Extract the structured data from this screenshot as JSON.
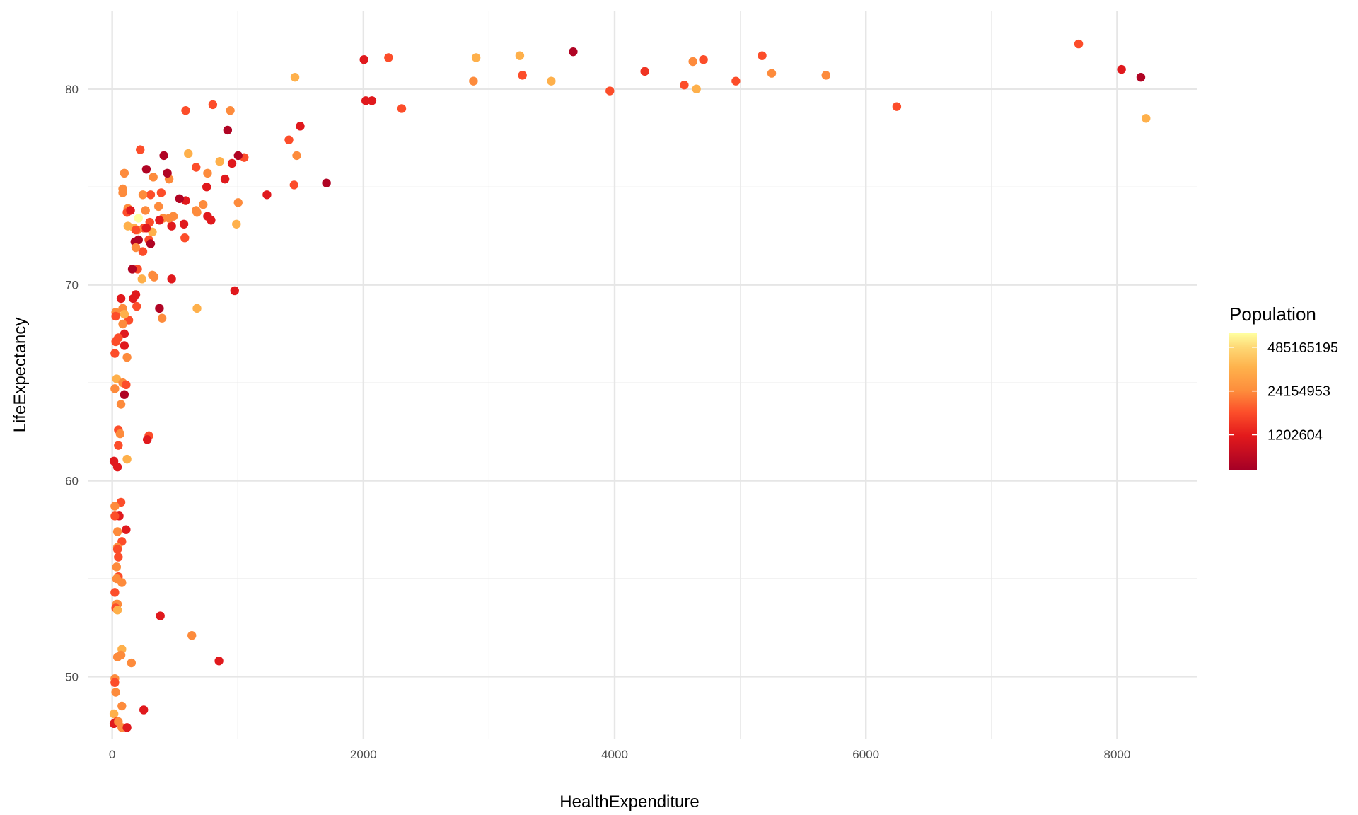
{
  "chart_data": {
    "type": "scatter",
    "xlabel": "HealthExpenditure",
    "ylabel": "LifeExpectancy",
    "xlim": [
      -195,
      8634
    ],
    "ylim": [
      46.8,
      84.0
    ],
    "x_ticks": [
      0,
      2000,
      4000,
      6000,
      8000
    ],
    "y_ticks": [
      50,
      60,
      70,
      80
    ],
    "grid": true,
    "legend": {
      "title": "Population",
      "placement": "right",
      "type": "colorbar",
      "scale": "log",
      "breaks": [
        1202604,
        24154953,
        485165195
      ],
      "labels": [
        "1202604",
        "24154953",
        "485165195"
      ],
      "range": [
        109000,
        1270000000
      ],
      "low_color": "#a50026",
      "high_color": "#ffffa0"
    },
    "columns": [
      "HealthExpenditure",
      "LifeExpectancy",
      "Population"
    ],
    "points": [
      [
        7694,
        82.3,
        5400000
      ],
      [
        8035,
        81.0,
        1000000
      ],
      [
        8189,
        80.6,
        163000
      ],
      [
        8230,
        78.5,
        110000000
      ],
      [
        6246,
        79.1,
        5400000
      ],
      [
        5682,
        80.7,
        24000000
      ],
      [
        5250,
        80.8,
        24000000
      ],
      [
        5174,
        81.7,
        5400000
      ],
      [
        4965,
        80.4,
        5400000
      ],
      [
        4707,
        81.5,
        5400000
      ],
      [
        4623,
        81.4,
        24000000
      ],
      [
        4651,
        80.0,
        110000000
      ],
      [
        4554,
        80.2,
        5400000
      ],
      [
        4240,
        80.9,
        2500000
      ],
      [
        3962,
        79.9,
        5400000
      ],
      [
        3670,
        81.9,
        163000
      ],
      [
        3495,
        80.4,
        110000000
      ],
      [
        3266,
        80.7,
        5400000
      ],
      [
        3245,
        81.7,
        110000000
      ],
      [
        2897,
        81.6,
        110000000
      ],
      [
        2876,
        80.4,
        24000000
      ],
      [
        2305,
        79.0,
        5400000
      ],
      [
        2200,
        81.6,
        5400000
      ],
      [
        2005,
        81.5,
        1000000
      ],
      [
        2068,
        79.4,
        1000000
      ],
      [
        2019,
        79.4,
        1000000
      ],
      [
        1455,
        80.6,
        110000000
      ],
      [
        1497,
        78.1,
        1000000
      ],
      [
        1407,
        77.4,
        5400000
      ],
      [
        1469,
        76.6,
        24000000
      ],
      [
        1448,
        75.1,
        5400000
      ],
      [
        1706,
        75.2,
        163000
      ],
      [
        1232,
        74.6,
        1000000
      ],
      [
        1051,
        76.5,
        5400000
      ],
      [
        1003,
        76.6,
        163000
      ],
      [
        954,
        76.2,
        1000000
      ],
      [
        1003,
        74.2,
        24000000
      ],
      [
        989,
        73.1,
        110000000
      ],
      [
        975,
        69.7,
        1000000
      ],
      [
        850,
        50.8,
        1000000
      ],
      [
        919,
        77.9,
        163000
      ],
      [
        940,
        78.9,
        24000000
      ],
      [
        801,
        79.2,
        5400000
      ],
      [
        585,
        78.9,
        5400000
      ],
      [
        856,
        76.3,
        110000000
      ],
      [
        898,
        75.4,
        1000000
      ],
      [
        759,
        75.7,
        24000000
      ],
      [
        752,
        75.0,
        1000000
      ],
      [
        668,
        76.0,
        5400000
      ],
      [
        606,
        76.7,
        110000000
      ],
      [
        759,
        73.5,
        1000000
      ],
      [
        787,
        73.3,
        1000000
      ],
      [
        724,
        74.1,
        24000000
      ],
      [
        668,
        73.8,
        24000000
      ],
      [
        675,
        73.7,
        24000000
      ],
      [
        585,
        74.3,
        1000000
      ],
      [
        536,
        74.4,
        163000
      ],
      [
        571,
        73.1,
        1000000
      ],
      [
        578,
        72.4,
        5400000
      ],
      [
        675,
        68.8,
        110000000
      ],
      [
        634,
        52.1,
        24000000
      ],
      [
        473,
        70.3,
        1000000
      ],
      [
        473,
        73.0,
        1000000
      ],
      [
        487,
        73.5,
        24000000
      ],
      [
        453,
        73.4,
        24000000
      ],
      [
        404,
        73.4,
        24000000
      ],
      [
        376,
        73.3,
        1000000
      ],
      [
        369,
        74.0,
        24000000
      ],
      [
        390,
        74.7,
        5400000
      ],
      [
        453,
        75.4,
        24000000
      ],
      [
        439,
        75.7,
        163000
      ],
      [
        411,
        76.6,
        163000
      ],
      [
        223,
        76.9,
        5400000
      ],
      [
        272,
        75.9,
        163000
      ],
      [
        327,
        75.5,
        24000000
      ],
      [
        306,
        74.6,
        5400000
      ],
      [
        244,
        74.6,
        24000000
      ],
      [
        265,
        73.8,
        24000000
      ],
      [
        376,
        68.8,
        163000
      ],
      [
        397,
        68.3,
        24000000
      ],
      [
        383,
        53.1,
        1000000
      ],
      [
        320,
        70.5,
        24000000
      ],
      [
        334,
        70.4,
        24000000
      ],
      [
        237,
        70.3,
        110000000
      ],
      [
        299,
        73.2,
        5400000
      ],
      [
        320,
        72.7,
        110000000
      ],
      [
        292,
        72.3,
        5400000
      ],
      [
        306,
        72.1,
        163000
      ],
      [
        251,
        72.9,
        5400000
      ],
      [
        272,
        72.9,
        1000000
      ],
      [
        244,
        71.7,
        5400000
      ],
      [
        292,
        62.3,
        5400000
      ],
      [
        279,
        62.1,
        1000000
      ],
      [
        251,
        48.3,
        1000000
      ],
      [
        202,
        72.8,
        24000000
      ],
      [
        174,
        72.9,
        110000000
      ],
      [
        188,
        72.8,
        5400000
      ],
      [
        209,
        72.3,
        163000
      ],
      [
        181,
        72.2,
        163000
      ],
      [
        188,
        71.9,
        24000000
      ],
      [
        202,
        70.8,
        5400000
      ],
      [
        160,
        70.8,
        163000
      ],
      [
        188,
        69.5,
        1000000
      ],
      [
        167,
        69.3,
        1000000
      ],
      [
        195,
        68.9,
        5400000
      ],
      [
        132,
        68.2,
        5400000
      ],
      [
        125,
        73.9,
        24000000
      ],
      [
        125,
        73.0,
        110000000
      ],
      [
        118,
        73.7,
        5400000
      ],
      [
        146,
        73.8,
        1000000
      ],
      [
        84,
        74.7,
        24000000
      ],
      [
        84,
        74.9,
        24000000
      ],
      [
        97,
        75.7,
        24000000
      ],
      [
        209,
        73.4,
        1300000000
      ],
      [
        70,
        69.3,
        1000000
      ],
      [
        84,
        68.8,
        24000000
      ],
      [
        97,
        68.5,
        110000000
      ],
      [
        28,
        68.6,
        24000000
      ],
      [
        28,
        68.4,
        5400000
      ],
      [
        84,
        68.0,
        24000000
      ],
      [
        97,
        67.5,
        1000000
      ],
      [
        49,
        67.3,
        5400000
      ],
      [
        28,
        67.1,
        5400000
      ],
      [
        97,
        66.9,
        1000000
      ],
      [
        21,
        66.5,
        5400000
      ],
      [
        118,
        66.3,
        24000000
      ],
      [
        35,
        65.2,
        110000000
      ],
      [
        84,
        65.0,
        24000000
      ],
      [
        111,
        64.9,
        5400000
      ],
      [
        21,
        64.7,
        24000000
      ],
      [
        97,
        64.4,
        163000
      ],
      [
        70,
        63.9,
        24000000
      ],
      [
        49,
        62.6,
        5400000
      ],
      [
        63,
        62.4,
        24000000
      ],
      [
        49,
        61.8,
        5400000
      ],
      [
        118,
        61.1,
        110000000
      ],
      [
        14,
        61.0,
        1000000
      ],
      [
        42,
        60.7,
        1000000
      ],
      [
        70,
        58.9,
        5400000
      ],
      [
        21,
        58.7,
        24000000
      ],
      [
        56,
        58.2,
        1000000
      ],
      [
        21,
        58.2,
        5400000
      ],
      [
        111,
        57.5,
        1000000
      ],
      [
        42,
        57.4,
        24000000
      ],
      [
        77,
        56.9,
        5400000
      ],
      [
        42,
        56.6,
        24000000
      ],
      [
        42,
        56.5,
        5400000
      ],
      [
        49,
        56.1,
        5400000
      ],
      [
        35,
        55.6,
        24000000
      ],
      [
        49,
        55.1,
        5400000
      ],
      [
        35,
        55.0,
        24000000
      ],
      [
        77,
        54.8,
        24000000
      ],
      [
        21,
        54.3,
        5400000
      ],
      [
        35,
        53.7,
        24000000
      ],
      [
        42,
        53.7,
        24000000
      ],
      [
        28,
        53.5,
        5400000
      ],
      [
        42,
        53.4,
        110000000
      ],
      [
        77,
        51.4,
        110000000
      ],
      [
        70,
        51.1,
        24000000
      ],
      [
        42,
        51.0,
        24000000
      ],
      [
        153,
        50.7,
        24000000
      ],
      [
        21,
        49.9,
        24000000
      ],
      [
        21,
        49.7,
        5400000
      ],
      [
        28,
        49.2,
        24000000
      ],
      [
        77,
        48.5,
        24000000
      ],
      [
        14,
        48.1,
        110000000
      ],
      [
        35,
        47.7,
        5400000
      ],
      [
        14,
        47.6,
        1000000
      ],
      [
        49,
        47.7,
        24000000
      ],
      [
        77,
        47.4,
        24000000
      ],
      [
        118,
        47.4,
        1000000
      ]
    ]
  }
}
